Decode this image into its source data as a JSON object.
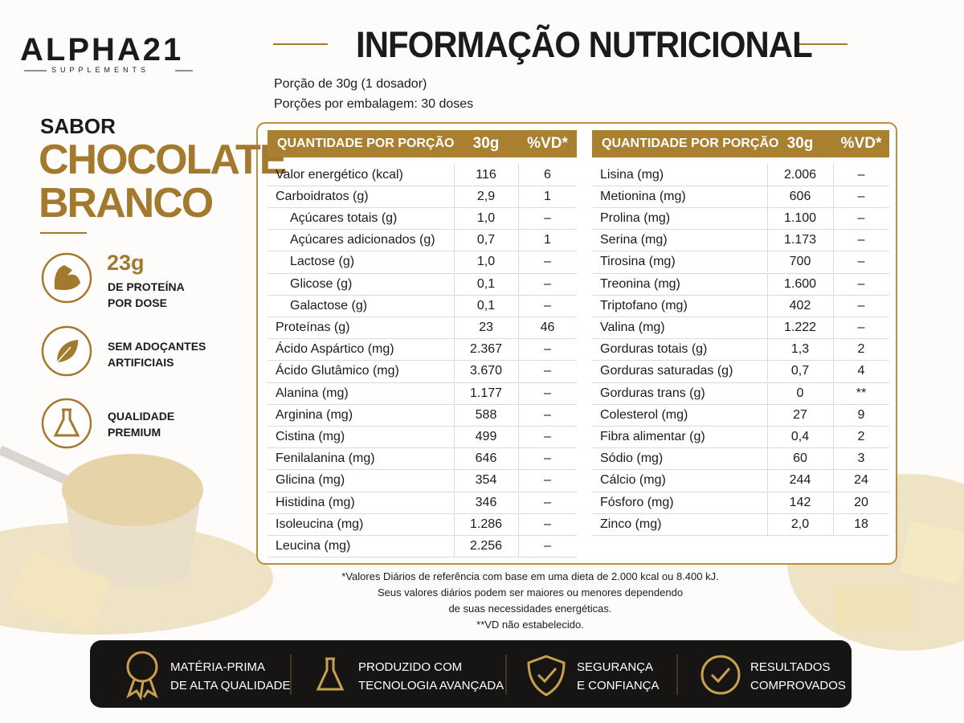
{
  "brand": {
    "name": "ALPHA21",
    "tagline": "SUPPLEMENTS"
  },
  "title": "INFORMAÇÃO NUTRICIONAL",
  "serving": [
    "Porção de 30g (1 dosador)",
    "Porções por embalagem: 30 doses"
  ],
  "flavor": {
    "label": "SABOR",
    "name_lines": [
      "CHOCOLATE",
      "BRANCO"
    ]
  },
  "features": [
    {
      "lines": [
        "23g",
        "DE PROTEÍNA",
        "POR DOSE"
      ]
    },
    {
      "lines": [
        "SEM ADOÇANTES",
        "ARTIFICIAIS"
      ]
    },
    {
      "lines": [
        "QUALIDADE",
        "PREMIUM"
      ]
    }
  ],
  "tables": [
    {
      "header": [
        "QUANTIDADE POR PORÇÃO",
        "30g",
        "%VD*"
      ],
      "rows": [
        {
          "cells": [
            "Valor energético (kcal)",
            "116",
            "6"
          ]
        },
        {
          "cells": [
            "Carboidratos (g)",
            "2,9",
            "1"
          ],
          "subrows": [
            [
              "Açúcares totais (g)",
              "1,0",
              "–"
            ],
            [
              "Açúcares adicionados (g)",
              "0,7",
              "1"
            ],
            [
              "Lactose (g)",
              "1,0",
              "–"
            ],
            [
              "Glicose (g)",
              "0,1",
              "–"
            ],
            [
              "Galactose (g)",
              "0,1",
              "–"
            ]
          ]
        },
        {
          "cells": [
            "Proteínas (g)",
            "23",
            "46"
          ]
        },
        {
          "cells": [
            "Ácido Aspártico (mg)",
            "2.367",
            "–"
          ]
        },
        {
          "cells": [
            "Ácido Glutâmico (mg)",
            "3.670",
            "–"
          ]
        },
        {
          "cells": [
            "Alanina (mg)",
            "1.177",
            "–"
          ]
        },
        {
          "cells": [
            "Arginina (mg)",
            "588",
            "–"
          ]
        },
        {
          "cells": [
            "Cistina (mg)",
            "499",
            "–"
          ]
        },
        {
          "cells": [
            "Fenilalanina (mg)",
            "646",
            "–"
          ]
        },
        {
          "cells": [
            "Glicina (mg)",
            "354",
            "–"
          ]
        },
        {
          "cells": [
            "Histidina (mg)",
            "346",
            "–"
          ]
        },
        {
          "cells": [
            "Isoleucina (mg)",
            "1.286",
            "–"
          ]
        },
        {
          "cells": [
            "Leucina (mg)",
            "2.256",
            "–"
          ]
        }
      ]
    },
    {
      "header": [
        "QUANTIDADE POR PORÇÃO",
        "30g",
        "%VD*"
      ],
      "rows": [
        {
          "cells": [
            "Lisina (mg)",
            "2.006",
            "–"
          ]
        },
        {
          "cells": [
            "Metionina (mg)",
            "606",
            "–"
          ]
        },
        {
          "cells": [
            "Prolina (mg)",
            "1.100",
            "–"
          ]
        },
        {
          "cells": [
            "Serina (mg)",
            "1.173",
            "–"
          ]
        },
        {
          "cells": [
            "Tirosina (mg)",
            "700",
            "–"
          ]
        },
        {
          "cells": [
            "Treonina (mg)",
            "1.600",
            "–"
          ]
        },
        {
          "cells": [
            "Triptofano (mg)",
            "402",
            "–"
          ]
        },
        {
          "cells": [
            "Valina (mg)",
            "1.222",
            "–"
          ]
        },
        {
          "cells": [
            "Gorduras totais (g)",
            "1,3",
            "2"
          ]
        },
        {
          "cells": [
            "Gorduras saturadas (g)",
            "0,7",
            "4"
          ]
        },
        {
          "cells": [
            "Gorduras trans (g)",
            "0",
            "**"
          ]
        },
        {
          "cells": [
            "Colesterol (mg)",
            "27",
            "9"
          ]
        },
        {
          "cells": [
            "Fibra alimentar (g)",
            "0,4",
            "2"
          ]
        },
        {
          "cells": [
            "Sódio (mg)",
            "60",
            "3"
          ]
        },
        {
          "cells": [
            "Cálcio (mg)",
            "244",
            "24"
          ]
        },
        {
          "cells": [
            "Fósforo (mg)",
            "142",
            "20"
          ]
        },
        {
          "cells": [
            "Zinco (mg)",
            "2,0",
            "18"
          ]
        }
      ]
    }
  ],
  "footnotes": [
    "*Valores Diários de referência com base em uma dieta de 2.000 kcal ou 8.400 kJ.",
    "Seus valores diários podem ser maiores ou menores dependendo",
    "de suas necessidades energéticas.",
    "**VD não estabelecido."
  ],
  "badges": [
    {
      "lines": [
        "MATÉRIA-PRIMA",
        "DE ALTA QUALIDADE"
      ]
    },
    {
      "lines": [
        "PRODUZIDO COM",
        "TECNOLOGIA AVANÇADA"
      ]
    },
    {
      "lines": [
        "SEGURANÇA",
        "E CONFIANÇA"
      ]
    },
    {
      "lines": [
        "RESULTADOS",
        "COMPROVADOS"
      ]
    }
  ]
}
